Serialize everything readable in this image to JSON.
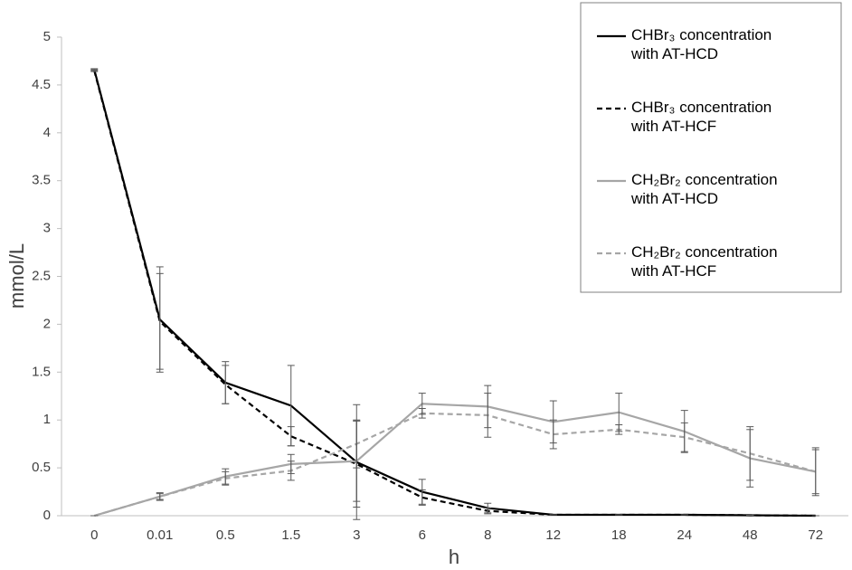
{
  "chart_data": {
    "type": "line",
    "x_label": "h",
    "y_label": "mmol/L",
    "categories": [
      "0",
      "0.01",
      "0.5",
      "1.5",
      "3",
      "6",
      "8",
      "12",
      "18",
      "24",
      "48",
      "72"
    ],
    "ylim": [
      0,
      5
    ],
    "yticks": [
      0,
      0.5,
      1,
      1.5,
      2,
      2.5,
      3,
      3.5,
      4,
      4.5,
      5
    ],
    "grid": false,
    "legend": "upper right",
    "series": [
      {
        "name": "CHBr₃ concentration with AT-HCD",
        "color": "#000000",
        "dash": false,
        "values": [
          4.66,
          2.05,
          1.39,
          1.15,
          0.56,
          0.25,
          0.08,
          0.01,
          0.01,
          0.01,
          0.005,
          0.0
        ],
        "errors": [
          0.01,
          0.55,
          0.22,
          0.42,
          0.6,
          0.13,
          0.05,
          0,
          0,
          0,
          0,
          0
        ]
      },
      {
        "name": "CHBr₃ concentration with AT-HCF",
        "color": "#000000",
        "dash": true,
        "values": [
          4.65,
          2.03,
          1.37,
          0.83,
          0.54,
          0.19,
          0.05,
          0.01,
          0.01,
          0.01,
          0.005,
          0.0
        ],
        "errors": [
          0.01,
          0.5,
          0.2,
          0.1,
          0.45,
          0.08,
          0.03,
          0,
          0,
          0,
          0,
          0
        ]
      },
      {
        "name": "CH₂Br₂ concentration with AT-HCD",
        "color": "#a6a6a6",
        "dash": false,
        "values": [
          0,
          0.2,
          0.41,
          0.54,
          0.57,
          1.17,
          1.14,
          0.98,
          1.08,
          0.88,
          0.6,
          0.46
        ],
        "errors": [
          0,
          0.04,
          0.08,
          0.1,
          0.42,
          0.11,
          0.22,
          0.22,
          0.2,
          0.22,
          0.3,
          0.23
        ]
      },
      {
        "name": "CH₂Br₂ concentration with AT-HCF",
        "color": "#a6a6a6",
        "dash": true,
        "values": [
          0,
          0.2,
          0.39,
          0.47,
          0.75,
          1.07,
          1.05,
          0.85,
          0.9,
          0.82,
          0.65,
          0.46
        ],
        "errors": [
          0,
          0.03,
          0.07,
          0.1,
          0.25,
          0.05,
          0.23,
          0.15,
          0.05,
          0.15,
          0.28,
          0.25
        ]
      }
    ]
  }
}
